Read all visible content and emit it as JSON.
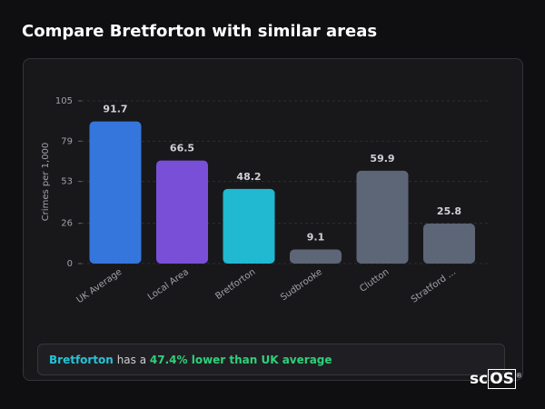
{
  "header": {
    "title": "Compare Bretforton with similar areas"
  },
  "chart_data": {
    "type": "bar",
    "ylabel": "Crimes per 1,000",
    "categories": [
      "UK Average",
      "Local Area",
      "Bretforton",
      "Sudbrooke",
      "Clutton",
      "Stratford ..."
    ],
    "values": [
      91.7,
      66.5,
      48.2,
      9.1,
      59.9,
      25.8
    ],
    "colors": [
      "#3576dc",
      "#7a4fd8",
      "#20b9d1",
      "#5d6677",
      "#5d6677",
      "#5d6677"
    ],
    "ylim": [
      0,
      105
    ],
    "yticks": [
      0,
      26,
      53,
      79,
      105
    ],
    "grid": true
  },
  "footer": {
    "area": "Bretforton",
    "text": "has a",
    "highlight": "47.4% lower than UK average"
  },
  "logo": {
    "left": "sc",
    "right": "OS",
    "mark": "®"
  }
}
